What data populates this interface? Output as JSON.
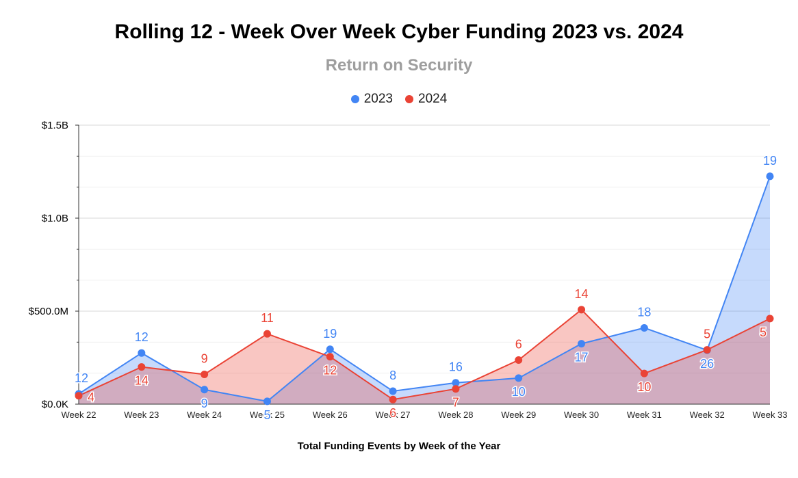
{
  "title": "Rolling 12 - Week Over Week Cyber Funding 2023 vs. 2024",
  "subtitle": "Return on Security",
  "chart_data": {
    "type": "area",
    "title": "Rolling 12 - Week Over Week Cyber Funding 2023 vs. 2024",
    "subtitle": "Return on Security",
    "xlabel": "Total Funding Events by Week of the Year",
    "ylabel": "",
    "categories": [
      "Week 22",
      "Week 23",
      "Week 24",
      "Week 25",
      "Week 26",
      "Week 27",
      "Week 28",
      "Week 29",
      "Week 30",
      "Week 31",
      "Week 32",
      "Week 33"
    ],
    "yticks": [
      {
        "value": 0,
        "label": "$0.0K"
      },
      {
        "value": 500,
        "label": "$500.0M"
      },
      {
        "value": 1000,
        "label": "$1.0B"
      },
      {
        "value": 1500,
        "label": "$1.5B"
      }
    ],
    "ylim": [
      0,
      1500
    ],
    "yunit": "millions USD",
    "grid": true,
    "legend_position": "top",
    "series": [
      {
        "name": "2023",
        "color": "#4285f4",
        "fill": "#c6d9f8",
        "values": [
          55,
          275,
          78,
          15,
          295,
          70,
          115,
          140,
          325,
          410,
          290,
          1225
        ],
        "data_labels": [
          "12",
          "12",
          "9",
          "5",
          "19",
          "8",
          "16",
          "10",
          "17",
          "18",
          "26",
          "19"
        ]
      },
      {
        "name": "2024",
        "color": "#ea4335",
        "fill": "#f6c5c0",
        "values": [
          45,
          200,
          160,
          378,
          255,
          25,
          82,
          237,
          508,
          165,
          292,
          460
        ],
        "data_labels": [
          "4",
          "14",
          "9",
          "11",
          "12",
          "6",
          "7",
          "6",
          "14",
          "10",
          "5",
          "5"
        ]
      }
    ]
  }
}
